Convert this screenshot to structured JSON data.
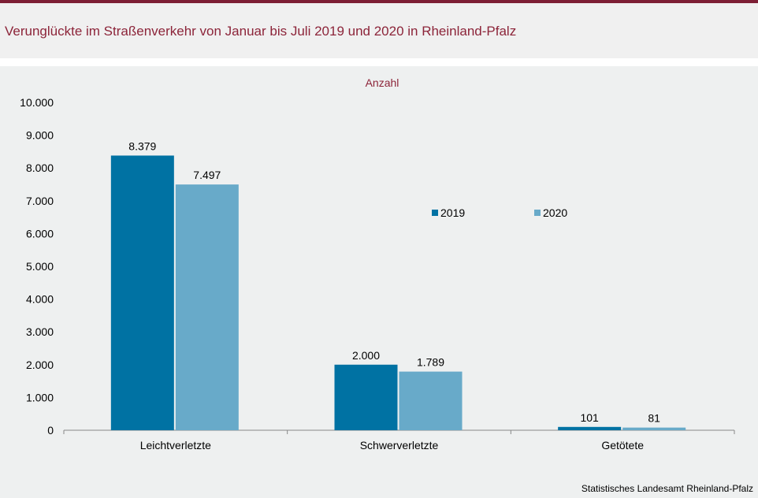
{
  "title": "Verunglückte im Straßenverkehr von Januar bis Juli 2019 und 2020 in Rheinland-Pfalz",
  "source": "Statistisches Landesamt Rheinland-Pfalz",
  "colors": {
    "title": "#8c2439",
    "series_2019": "#0072a3",
    "series_2020": "#68aac9"
  },
  "chart_data": {
    "type": "bar",
    "ylabel": "Anzahl",
    "categories": [
      "Leichtverletzte",
      "Schwerverletzte",
      "Getötete"
    ],
    "series": [
      {
        "name": "2019",
        "values": [
          8379,
          2000,
          101
        ],
        "labels": [
          "8.379",
          "2.000",
          "101"
        ]
      },
      {
        "name": "2020",
        "values": [
          7497,
          1789,
          81
        ],
        "labels": [
          "7.497",
          "1.789",
          "81"
        ]
      }
    ],
    "ylim": [
      0,
      10000
    ],
    "yticks": [
      0,
      1000,
      2000,
      3000,
      4000,
      5000,
      6000,
      7000,
      8000,
      9000,
      10000
    ],
    "ytick_labels": [
      "0",
      "1.000",
      "2.000",
      "3.000",
      "4.000",
      "5.000",
      "6.000",
      "7.000",
      "8.000",
      "9.000",
      "10.000"
    ],
    "grid": false,
    "legend": "upper-right"
  }
}
